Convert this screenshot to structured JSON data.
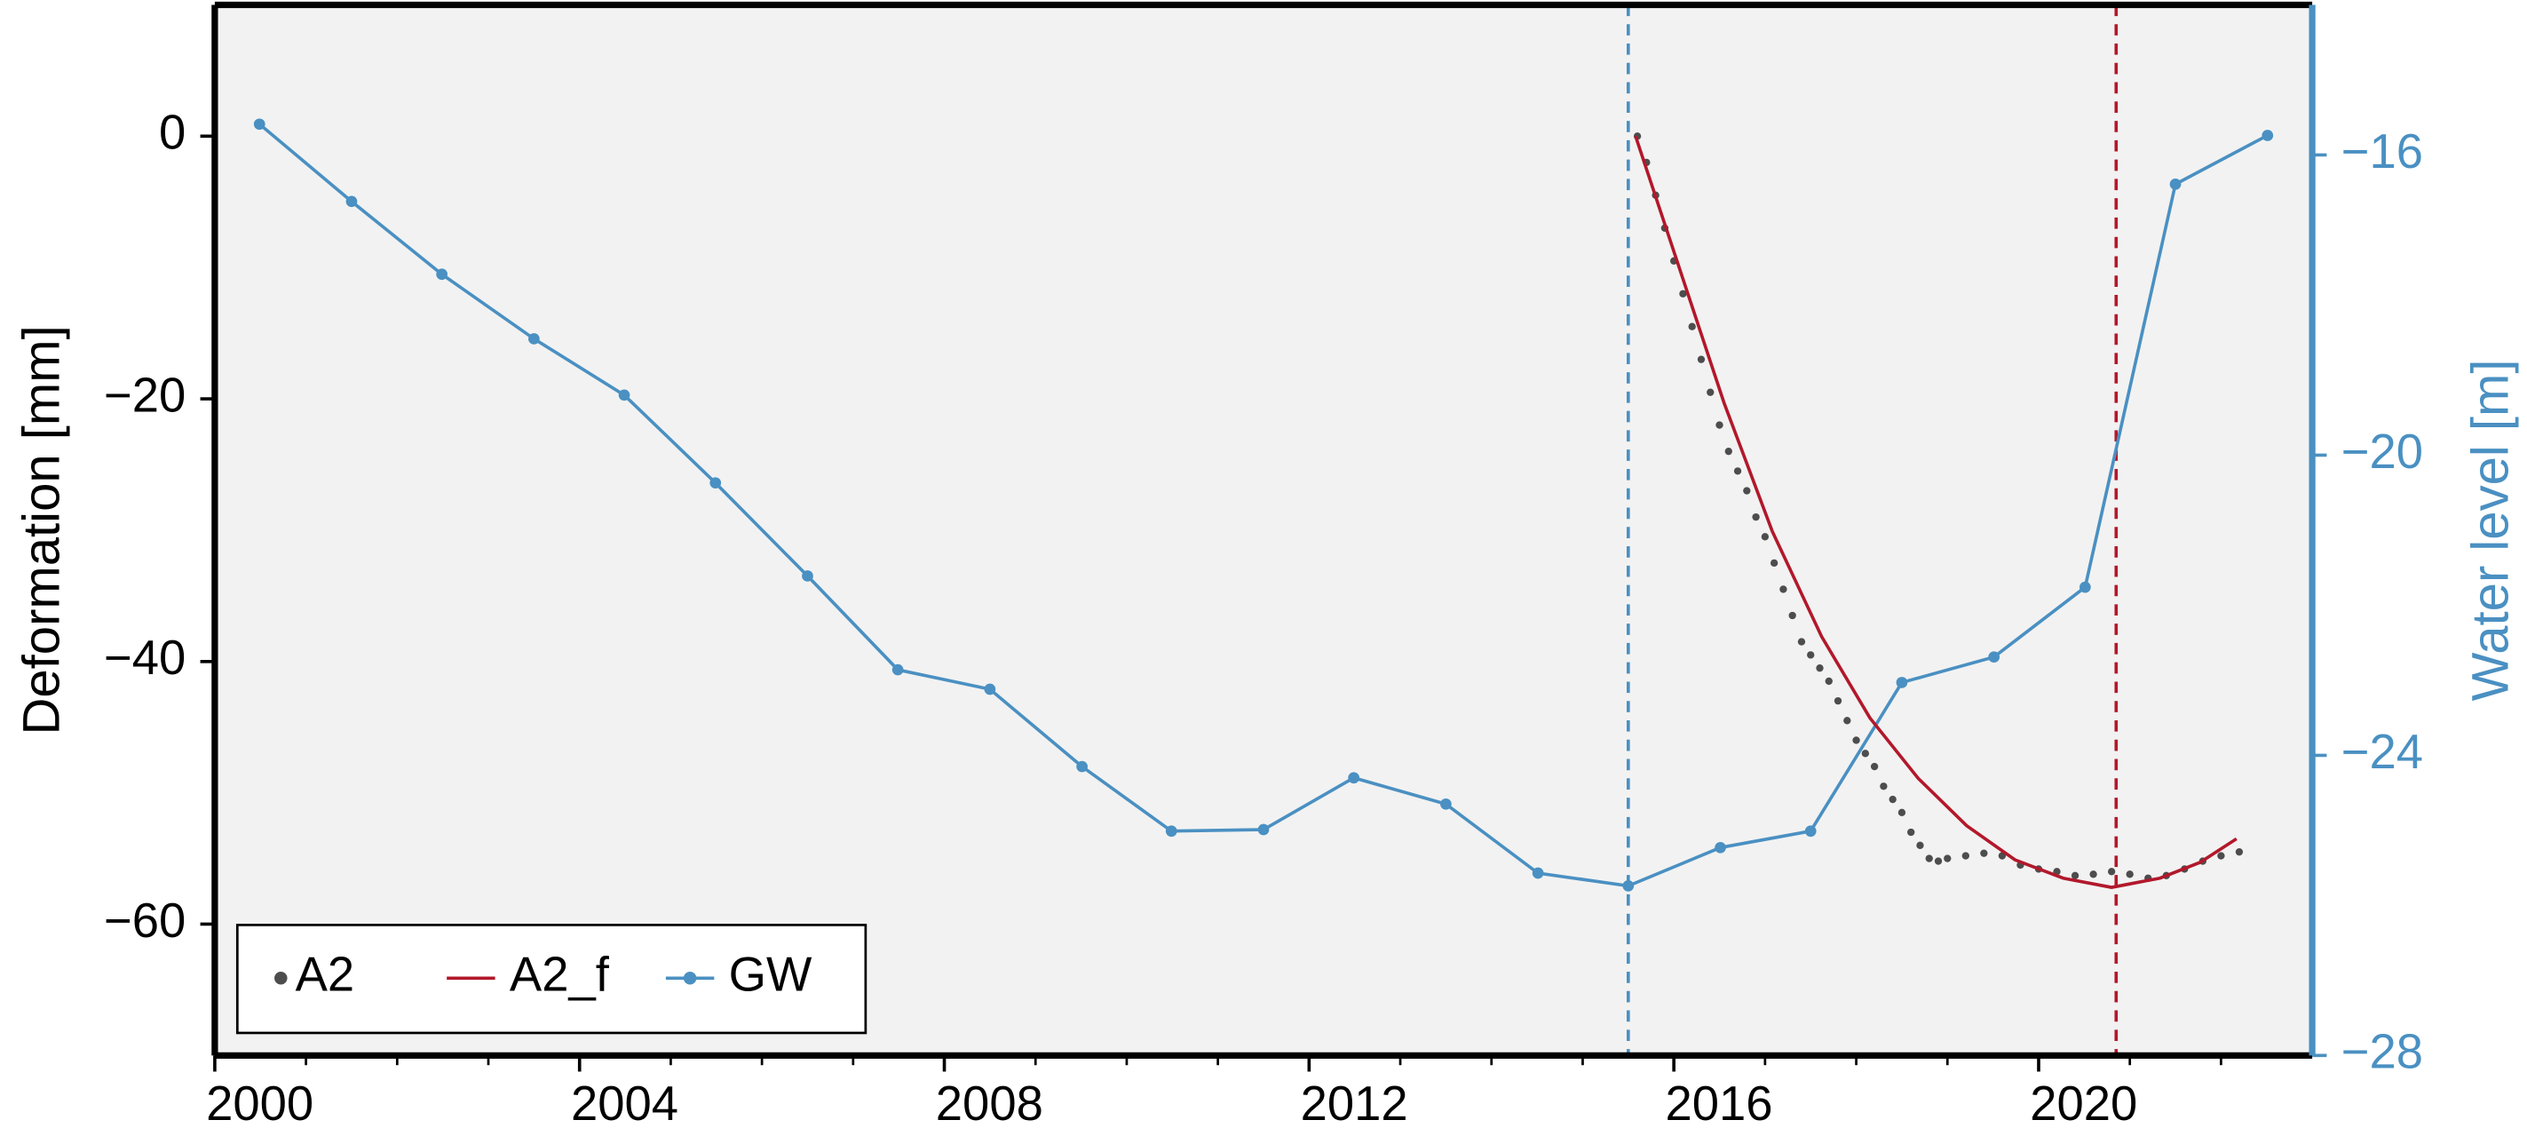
{
  "chart_data": {
    "type": "line",
    "xlim": [
      2000,
      2023
    ],
    "xticks": [
      2000,
      2004,
      2008,
      2012,
      2016,
      2020
    ],
    "xticks_minor": [
      2001,
      2002,
      2003,
      2005,
      2006,
      2007,
      2009,
      2010,
      2011,
      2013,
      2014,
      2015,
      2017,
      2018,
      2019,
      2021,
      2022
    ],
    "ylim": [
      -70,
      10
    ],
    "yticks": [
      {
        "value": 0,
        "label": "0"
      },
      {
        "value": -20,
        "label": "−20"
      },
      {
        "value": -40,
        "label": "−40"
      },
      {
        "value": -60,
        "label": "−60"
      }
    ],
    "y2lim": [
      -28,
      -14
    ],
    "y2ticks": [
      {
        "value": -16,
        "label": "−16"
      },
      {
        "value": -20,
        "label": "−20"
      },
      {
        "value": -24,
        "label": "−24"
      },
      {
        "value": -28,
        "label": "−28"
      }
    ],
    "ylabel": "Deformation [mm]",
    "y2label": "Water level [m]",
    "y2color": "#4a90c2",
    "background": "#f2f2f2",
    "legend": "lower left",
    "vlines": [
      {
        "x": 2015.5,
        "color": "#4a90c2"
      },
      {
        "x": 2020.85,
        "color": "#b2182b"
      }
    ],
    "series": [
      {
        "name": "A2",
        "type": "scatter",
        "color": "#4d4d4d",
        "x": [
          2015.6,
          2015.7,
          2015.8,
          2015.9,
          2016.0,
          2016.1,
          2016.2,
          2016.3,
          2016.4,
          2016.5,
          2016.6,
          2016.7,
          2016.8,
          2016.9,
          2017.0,
          2017.1,
          2017.2,
          2017.3,
          2017.4,
          2017.5,
          2017.6,
          2017.7,
          2017.8,
          2017.9,
          2018.0,
          2018.1,
          2018.2,
          2018.3,
          2018.4,
          2018.5,
          2018.6,
          2018.7,
          2018.8,
          2018.9,
          2019.0,
          2019.2,
          2019.4,
          2019.6,
          2019.8,
          2020.0,
          2020.2,
          2020.4,
          2020.6,
          2020.8,
          2021.0,
          2021.2,
          2021.4,
          2021.6,
          2021.8,
          2022.0,
          2022.2
        ],
        "values": [
          0,
          -2,
          -4.5,
          -7,
          -9.5,
          -12,
          -14.5,
          -17,
          -19.5,
          -22,
          -24,
          -25.5,
          -27,
          -29,
          -30.5,
          -32.5,
          -34.5,
          -36.5,
          -38.5,
          -39.5,
          -40.5,
          -41.5,
          -43,
          -44.5,
          -46,
          -47,
          -48,
          -49.5,
          -50.5,
          -51.5,
          -53,
          -54,
          -55,
          -55.2,
          -55,
          -54.8,
          -54.6,
          -54.8,
          -55.5,
          -55.8,
          -56,
          -56.3,
          -56.2,
          -56,
          -56.2,
          -56.5,
          -56.3,
          -55.8,
          -55.2,
          -54.8,
          -54.5
        ]
      },
      {
        "name": "A2_f",
        "type": "line",
        "color": "#b2182b",
        "x": [
          2015.58,
          2016.02,
          2016.55,
          2017.08,
          2017.62,
          2018.15,
          2018.68,
          2019.21,
          2019.74,
          2020.27,
          2020.8,
          2021.33,
          2021.77,
          2022.17
        ],
        "values": [
          0,
          -9.2,
          -20.3,
          -30.1,
          -38.1,
          -44.3,
          -48.9,
          -52.5,
          -55.1,
          -56.5,
          -57.2,
          -56.5,
          -55.3,
          -53.5
        ]
      },
      {
        "name": "GW",
        "type": "line",
        "marker": true,
        "axis": "y2",
        "color": "#4a90c2",
        "x": [
          2000.49,
          2001.5,
          2002.49,
          2003.5,
          2004.49,
          2005.49,
          2006.5,
          2007.49,
          2008.5,
          2009.51,
          2010.49,
          2011.5,
          2012.49,
          2013.5,
          2014.51,
          2015.5,
          2016.51,
          2017.5,
          2018.5,
          2019.51,
          2020.51,
          2021.5,
          2022.51
        ],
        "values": [
          -15.59,
          -16.62,
          -17.59,
          -18.45,
          -19.2,
          -20.37,
          -21.61,
          -22.86,
          -23.12,
          -24.15,
          -25.01,
          -24.99,
          -24.3,
          -24.65,
          -25.57,
          -25.74,
          -25.23,
          -25.01,
          -23.03,
          -22.69,
          -21.76,
          -16.39,
          -15.74
        ]
      }
    ]
  }
}
